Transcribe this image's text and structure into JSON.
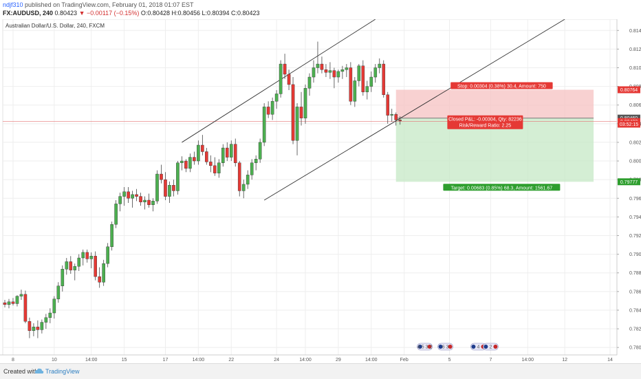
{
  "header": {
    "user": "ndjf310",
    "published": "published on TradingView.com, February 01, 2018 01:07 EST",
    "symbol": "FX:AUDUSD, 240",
    "last": "0.80423",
    "change": "▼ −0.00117 (−0.15%)",
    "ohlc": "O:0.80428 H:0.80456 L:0.80394 C:0.80423"
  },
  "footer": {
    "created_with": "Created with",
    "brand": "TradingView"
  },
  "chart_data": {
    "type": "candlestick",
    "title": "Australian Dollar/U.S. Dollar, 240, FXCM",
    "ylim": [
      0.7792,
      0.8152
    ],
    "y_ticks": [
      "0.81400",
      "0.81200",
      "0.81000",
      "0.80800",
      "0.80600",
      "0.80400",
      "0.80200",
      "0.80000",
      "0.79800",
      "0.79600",
      "0.79400",
      "0.79200",
      "0.79000",
      "0.78800",
      "0.78600",
      "0.78400",
      "0.78200",
      "0.78000"
    ],
    "x_ticks": [
      {
        "i": 2,
        "label": "8"
      },
      {
        "i": 12,
        "label": "10"
      },
      {
        "i": 21,
        "label": "14:00"
      },
      {
        "i": 29,
        "label": "15"
      },
      {
        "i": 39,
        "label": "17"
      },
      {
        "i": 47,
        "label": "14:00"
      },
      {
        "i": 55,
        "label": "22"
      },
      {
        "i": 66,
        "label": "24"
      },
      {
        "i": 73,
        "label": "14:00"
      },
      {
        "i": 81,
        "label": "29"
      },
      {
        "i": 89,
        "label": "14:00"
      },
      {
        "i": 97,
        "label": "Feb"
      },
      {
        "i": 108,
        "label": "5"
      },
      {
        "i": 118,
        "label": "7"
      },
      {
        "i": 127,
        "label": "14:00"
      },
      {
        "i": 136,
        "label": "12"
      },
      {
        "i": 147,
        "label": "14"
      }
    ],
    "candles": [
      [
        0.7848,
        0.7851,
        0.7843,
        0.7846
      ],
      [
        0.7846,
        0.7852,
        0.7842,
        0.7849
      ],
      [
        0.7849,
        0.7853,
        0.7845,
        0.7847
      ],
      [
        0.7847,
        0.7856,
        0.7844,
        0.7855
      ],
      [
        0.7855,
        0.7862,
        0.7851,
        0.7857
      ],
      [
        0.7857,
        0.7861,
        0.7826,
        0.7828
      ],
      [
        0.7828,
        0.7832,
        0.781,
        0.7818
      ],
      [
        0.7818,
        0.7826,
        0.7812,
        0.7822
      ],
      [
        0.7822,
        0.7829,
        0.781,
        0.7819
      ],
      [
        0.7819,
        0.783,
        0.7815,
        0.7827
      ],
      [
        0.7827,
        0.7836,
        0.782,
        0.7832
      ],
      [
        0.7832,
        0.7842,
        0.7826,
        0.7837
      ],
      [
        0.7837,
        0.7855,
        0.7831,
        0.7852
      ],
      [
        0.7852,
        0.787,
        0.7848,
        0.7866
      ],
      [
        0.7866,
        0.7888,
        0.786,
        0.7884
      ],
      [
        0.7884,
        0.7896,
        0.7878,
        0.7892
      ],
      [
        0.7892,
        0.7898,
        0.7879,
        0.7883
      ],
      [
        0.7883,
        0.789,
        0.7872,
        0.7887
      ],
      [
        0.7887,
        0.79,
        0.7882,
        0.7896
      ],
      [
        0.7896,
        0.7905,
        0.7888,
        0.7902
      ],
      [
        0.7902,
        0.7905,
        0.7891,
        0.7895
      ],
      [
        0.7895,
        0.7902,
        0.7885,
        0.7898
      ],
      [
        0.7898,
        0.7903,
        0.7872,
        0.7876
      ],
      [
        0.7876,
        0.7886,
        0.7864,
        0.787
      ],
      [
        0.787,
        0.7894,
        0.7866,
        0.789
      ],
      [
        0.789,
        0.7912,
        0.7886,
        0.7908
      ],
      [
        0.7908,
        0.7935,
        0.7904,
        0.7932
      ],
      [
        0.7932,
        0.7958,
        0.7928,
        0.7954
      ],
      [
        0.7954,
        0.7966,
        0.7946,
        0.7962
      ],
      [
        0.7962,
        0.7972,
        0.7952,
        0.7967
      ],
      [
        0.7967,
        0.7972,
        0.7955,
        0.796
      ],
      [
        0.796,
        0.7968,
        0.795,
        0.7964
      ],
      [
        0.7964,
        0.797,
        0.7957,
        0.7962
      ],
      [
        0.7962,
        0.7966,
        0.7952,
        0.7956
      ],
      [
        0.7956,
        0.7962,
        0.7948,
        0.7958
      ],
      [
        0.7958,
        0.7965,
        0.795,
        0.7953
      ],
      [
        0.7953,
        0.796,
        0.7946,
        0.7957
      ],
      [
        0.7957,
        0.799,
        0.7954,
        0.7986
      ],
      [
        0.7986,
        0.7996,
        0.7976,
        0.798
      ],
      [
        0.798,
        0.7988,
        0.7958,
        0.7962
      ],
      [
        0.7962,
        0.7978,
        0.7955,
        0.7974
      ],
      [
        0.7974,
        0.798,
        0.7962,
        0.7968
      ],
      [
        0.7968,
        0.8,
        0.7964,
        0.7998
      ],
      [
        0.7998,
        0.8005,
        0.799,
        0.8
      ],
      [
        0.8,
        0.8002,
        0.7988,
        0.7992
      ],
      [
        0.7992,
        0.8008,
        0.7988,
        0.8004
      ],
      [
        0.8004,
        0.801,
        0.7996,
        0.8
      ],
      [
        0.8,
        0.8022,
        0.7996,
        0.8017
      ],
      [
        0.8017,
        0.8028,
        0.8006,
        0.801
      ],
      [
        0.801,
        0.8014,
        0.7996,
        0.7999
      ],
      [
        0.7999,
        0.8006,
        0.7988,
        0.7995
      ],
      [
        0.7995,
        0.8004,
        0.7984,
        0.7987
      ],
      [
        0.7987,
        0.8002,
        0.7982,
        0.7998
      ],
      [
        0.7998,
        0.8018,
        0.7994,
        0.8014
      ],
      [
        0.8014,
        0.802,
        0.8,
        0.8004
      ],
      [
        0.8004,
        0.8022,
        0.8,
        0.8018
      ],
      [
        0.8018,
        0.8024,
        0.7994,
        0.7998
      ],
      [
        0.7998,
        0.8,
        0.7962,
        0.7968
      ],
      [
        0.7968,
        0.798,
        0.796,
        0.7975
      ],
      [
        0.7975,
        0.799,
        0.797,
        0.7985
      ],
      [
        0.7985,
        0.8002,
        0.798,
        0.7998
      ],
      [
        0.7998,
        0.8006,
        0.799,
        0.8002
      ],
      [
        0.8002,
        0.8024,
        0.7998,
        0.802
      ],
      [
        0.802,
        0.8062,
        0.8016,
        0.8058
      ],
      [
        0.8058,
        0.8064,
        0.8046,
        0.805
      ],
      [
        0.805,
        0.8068,
        0.8044,
        0.8064
      ],
      [
        0.8064,
        0.8076,
        0.8056,
        0.8072
      ],
      [
        0.8072,
        0.8108,
        0.8068,
        0.8104
      ],
      [
        0.8104,
        0.8115,
        0.8088,
        0.8093
      ],
      [
        0.8093,
        0.8098,
        0.8076,
        0.8082
      ],
      [
        0.8082,
        0.809,
        0.8018,
        0.8022
      ],
      [
        0.8022,
        0.8062,
        0.8006,
        0.8058
      ],
      [
        0.8058,
        0.8074,
        0.8038,
        0.8046
      ],
      [
        0.8046,
        0.8082,
        0.804,
        0.8078
      ],
      [
        0.8078,
        0.8094,
        0.807,
        0.809
      ],
      [
        0.809,
        0.8108,
        0.8084,
        0.81
      ],
      [
        0.81,
        0.8128,
        0.8094,
        0.8104
      ],
      [
        0.8104,
        0.8112,
        0.8094,
        0.8098
      ],
      [
        0.8098,
        0.8104,
        0.809,
        0.8095
      ],
      [
        0.8095,
        0.8106,
        0.8088,
        0.8097
      ],
      [
        0.8097,
        0.81,
        0.8078,
        0.809
      ],
      [
        0.809,
        0.8098,
        0.8084,
        0.8096
      ],
      [
        0.8096,
        0.8102,
        0.8088,
        0.8098
      ],
      [
        0.8098,
        0.8104,
        0.809,
        0.81
      ],
      [
        0.81,
        0.8106,
        0.806,
        0.8064
      ],
      [
        0.8064,
        0.809,
        0.8058,
        0.8086
      ],
      [
        0.8086,
        0.8104,
        0.808,
        0.8102
      ],
      [
        0.8102,
        0.8108,
        0.807,
        0.8074
      ],
      [
        0.8074,
        0.8086,
        0.8066,
        0.808
      ],
      [
        0.808,
        0.8096,
        0.8074,
        0.809
      ],
      [
        0.809,
        0.8104,
        0.8084,
        0.81
      ],
      [
        0.81,
        0.811,
        0.8094,
        0.8104
      ],
      [
        0.8104,
        0.8108,
        0.8068,
        0.8071
      ],
      [
        0.8071,
        0.8074,
        0.804,
        0.8049
      ],
      [
        0.8049,
        0.8056,
        0.8042,
        0.805
      ],
      [
        0.805,
        0.8052,
        0.8038,
        0.8044
      ],
      [
        0.8044,
        0.8048,
        0.8039,
        0.8043
      ]
    ],
    "channel_upper": [
      [
        43,
        0.802
      ],
      [
        90,
        0.8152
      ]
    ],
    "channel_lower": [
      [
        63,
        0.7958
      ],
      [
        136,
        0.8152
      ]
    ],
    "risk_reward": {
      "entry": 0.8046,
      "stop": 0.80764,
      "target": 0.79777,
      "x_start": 95,
      "x_end": 143,
      "stop_label": "Stop: 0.00304 (0.38%) 30.4, Amount: 750",
      "target_label": "Target: 0.00683 (0.85%) 68.3, Amount: 1561.67",
      "pnl_label": "Closed P&L: -0.00304, Qty: 82236",
      "ratio_label": "Risk/Reward Ratio: 2.25"
    },
    "price_labels": [
      {
        "value": 0.80764,
        "text": "0.80764",
        "color": "#e53935"
      },
      {
        "value": 0.8046,
        "text": "0.80460",
        "color": "#555555"
      },
      {
        "value": 0.80423,
        "text": "0.80423",
        "color": "#e53935"
      },
      {
        "value": 0.80395,
        "text": "03:52:15",
        "color": "#e53935"
      },
      {
        "value": 0.79777,
        "text": "0.79777",
        "color": "#2e9e2e"
      }
    ],
    "last_price": 0.80423,
    "event_icons": [
      {
        "i": 102,
        "label": "4 5 3 2"
      },
      {
        "i": 107,
        "label": "6 3"
      },
      {
        "i": 115,
        "label": "4"
      },
      {
        "i": 118,
        "label": "2"
      }
    ],
    "colors": {
      "up": "#4caf50",
      "down": "#e53935",
      "grid": "#eeeeee",
      "stop_zone": "#f6c2c2",
      "target_zone": "#c6e8c6"
    }
  }
}
